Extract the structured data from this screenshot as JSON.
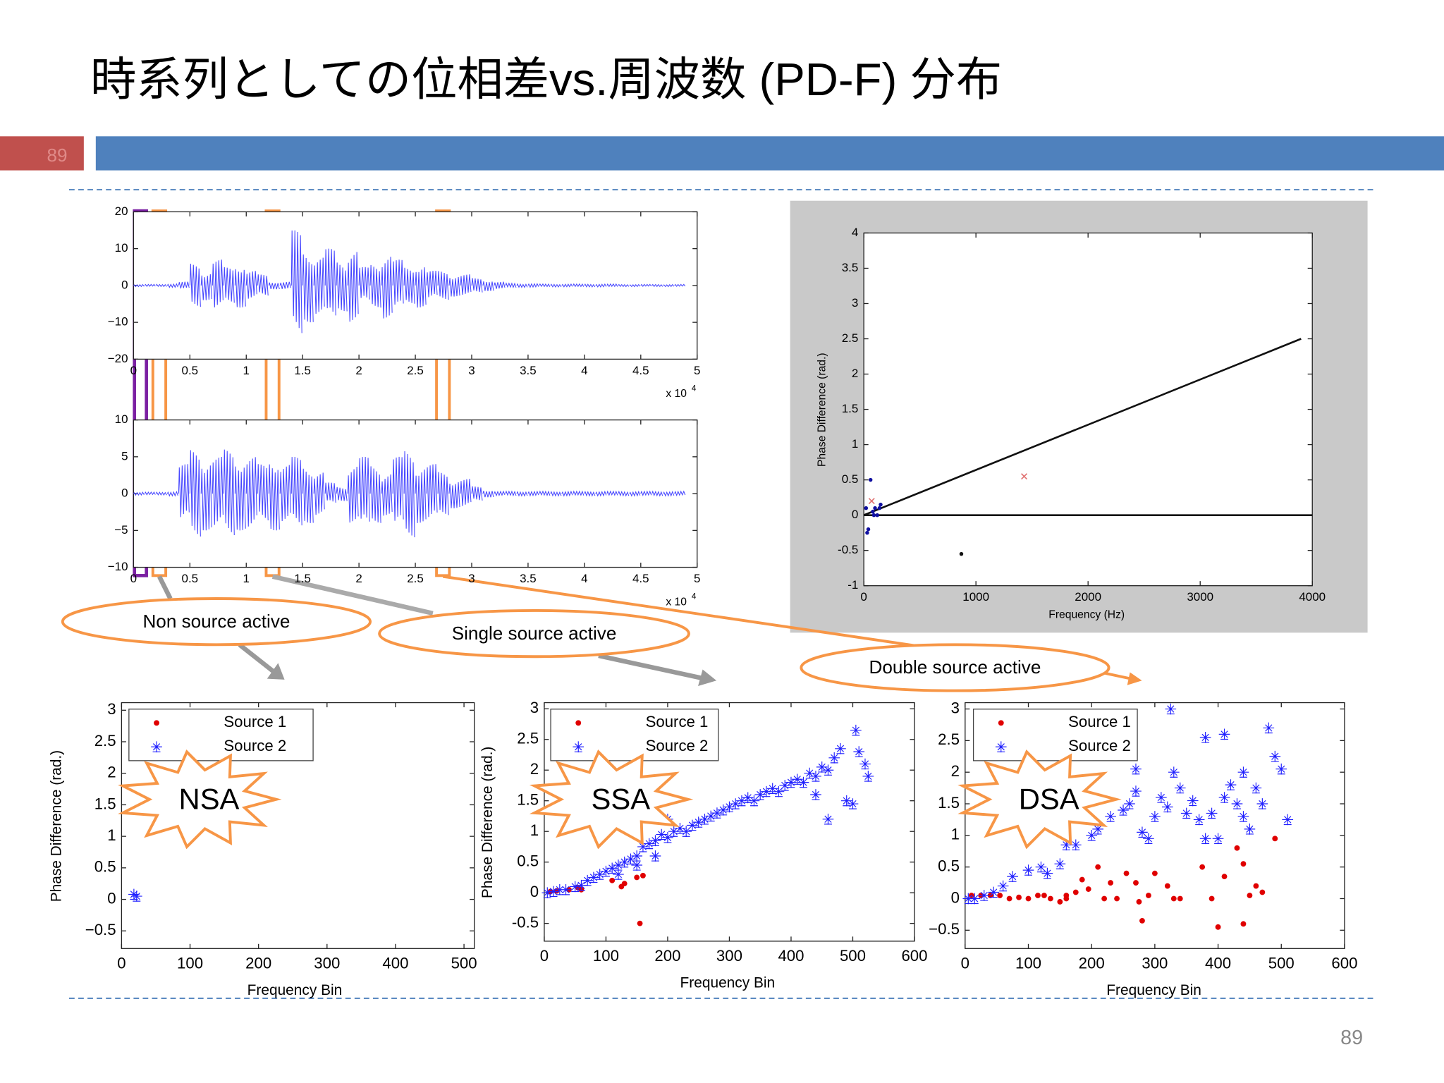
{
  "slide": {
    "title": "時系列としての位相差vs.周波数 (PD-F) 分布",
    "tab_number": "89",
    "page_number": "89",
    "labels": {
      "non_source": "Non source active",
      "single_source": "Single source active",
      "double_source": "Double source active"
    }
  },
  "chart_data": [
    {
      "type": "line",
      "color": "#4646ff",
      "xlim": [
        0,
        5
      ],
      "ylim": [
        -20,
        20
      ],
      "xticks": [
        0,
        0.5,
        1,
        1.5,
        2,
        2.5,
        3,
        3.5,
        4,
        4.5,
        5
      ],
      "yticks": [
        20,
        10,
        0,
        {
          "value": -10,
          "label": "−10"
        },
        {
          "value": -20,
          "label": "−20"
        }
      ],
      "x_multiplier": "x 10",
      "x_exponent": "4",
      "x": [
        0,
        0.1,
        0.2,
        0.3,
        0.4,
        0.5,
        0.6,
        0.7,
        0.8,
        0.9,
        1,
        1.1,
        1.2,
        1.3,
        1.4,
        1.5,
        1.6,
        1.7,
        1.8,
        1.9,
        2,
        2.1,
        2.2,
        2.3,
        2.4,
        2.5,
        2.6,
        2.7,
        2.8,
        2.9,
        3,
        3.1,
        3.2,
        3.3,
        3.4,
        3.5,
        3.6,
        3.7,
        3.8,
        3.9,
        4,
        4.1,
        4.2,
        4.3,
        4.4,
        4.5,
        4.6,
        4.7,
        4.8
      ],
      "values": [
        0.3,
        0.3,
        0.3,
        0.5,
        1,
        6,
        4,
        7,
        5,
        6,
        4,
        3,
        1,
        1,
        15,
        10,
        8,
        10,
        7,
        10,
        5,
        6,
        9,
        7,
        5,
        6,
        4,
        4,
        3,
        3,
        2,
        1.5,
        1,
        0.6,
        0.5,
        0.5,
        0.4,
        0.4,
        0.4,
        0.4,
        0.4,
        0.4,
        0.4,
        0.3,
        0.3,
        0.3,
        0.3,
        0.3,
        0.3
      ]
    },
    {
      "type": "line",
      "color": "#4646ff",
      "xlim": [
        0,
        5
      ],
      "ylim": [
        -10,
        10
      ],
      "xticks": [
        0,
        0.5,
        1,
        1.5,
        2,
        2.5,
        3,
        3.5,
        4,
        4.5,
        5
      ],
      "yticks": [
        10,
        5,
        0,
        {
          "value": -5,
          "label": "−5"
        },
        {
          "value": -10,
          "label": "−10"
        }
      ],
      "x_multiplier": "x 10",
      "x_exponent": "4",
      "x": [
        0,
        0.1,
        0.2,
        0.3,
        0.4,
        0.5,
        0.6,
        0.7,
        0.8,
        0.9,
        1,
        1.1,
        1.2,
        1.3,
        1.4,
        1.5,
        1.6,
        1.7,
        1.8,
        1.9,
        2,
        2.1,
        2.2,
        2.3,
        2.4,
        2.5,
        2.6,
        2.7,
        2.8,
        2.9,
        3,
        3.1,
        3.2,
        3.3,
        3.4,
        3.5,
        3.6,
        3.7,
        3.8,
        3.9,
        4,
        4.1,
        4.2,
        4.3,
        4.4,
        4.5,
        4.6,
        4.7,
        4.8
      ],
      "values": [
        0.2,
        0.2,
        0.2,
        0.3,
        4,
        6,
        5,
        5,
        6,
        5,
        5,
        4,
        5,
        4,
        5,
        4,
        3,
        1.5,
        1,
        4,
        5,
        4,
        3,
        5,
        6,
        4,
        4,
        3,
        2,
        2,
        1,
        0.5,
        0.3,
        0.3,
        0.3,
        0.3,
        0.3,
        0.3,
        0.3,
        0.3,
        0.3,
        0.3,
        0.3,
        0.3,
        0.3,
        0.3,
        0.3,
        0.3,
        0.3
      ]
    },
    {
      "type": "scatter",
      "xlabel": "Frequency (Hz)",
      "ylabel": "Phase Difference (rad.)",
      "xlim": [
        0,
        4000
      ],
      "ylim": [
        -1,
        4
      ],
      "xticks": [
        0,
        1000,
        2000,
        3000,
        4000
      ],
      "yticks": [
        -1,
        -0.5,
        0,
        0.5,
        1,
        1.5,
        2,
        2.5,
        3,
        3.5,
        4
      ],
      "lines": [
        {
          "color": "#111111",
          "x": [
            0,
            3900
          ],
          "values": [
            0,
            2.5
          ]
        },
        {
          "color": "#111111",
          "x": [
            0,
            4000
          ],
          "values": [
            0,
            0
          ]
        }
      ],
      "series": [
        {
          "color": "#1010a0",
          "marker": "dot",
          "x": [
            20,
            40,
            60,
            80,
            100,
            120,
            150,
            30,
            90,
            140
          ],
          "values": [
            0.1,
            -0.2,
            0.5,
            0.05,
            0.1,
            0,
            0.15,
            -0.25,
            0,
            0.1
          ]
        },
        {
          "color": "#e07070",
          "marker": "x",
          "x": [
            1430,
            70
          ],
          "values": [
            0.55,
            0.2
          ]
        },
        {
          "color": "#111111",
          "marker": "dot",
          "x": [
            870
          ],
          "values": [
            -0.55
          ]
        }
      ]
    },
    {
      "type": "scatter",
      "annotation": "NSA",
      "xlabel": "Frequency Bin",
      "ylabel": "Phase Difference (rad.)",
      "xlim": [
        0,
        515
      ],
      "ylim": [
        -0.78,
        3.12
      ],
      "xticks": [
        0,
        100,
        200,
        300,
        400,
        500
      ],
      "yticks": [
        {
          "value": -0.5,
          "label": "−0.5"
        },
        0,
        0.5,
        1,
        1.5,
        2,
        2.5,
        3
      ],
      "series": [
        {
          "name": "Source 1",
          "color": "#e00000",
          "marker": "dot",
          "x": [],
          "values": []
        },
        {
          "name": "Source 2",
          "color": "#2020ff",
          "marker": "star",
          "x": [
            18,
            22
          ],
          "values": [
            0.08,
            0.05
          ]
        }
      ]
    },
    {
      "type": "scatter",
      "annotation": "SSA",
      "xlabel": "Frequency Bin",
      "ylabel": "Phase Difference (rad.)",
      "xlim": [
        0,
        600
      ],
      "ylim": [
        -0.79,
        3.1
      ],
      "xticks": [
        0,
        100,
        200,
        300,
        400,
        500,
        600
      ],
      "yticks": [
        -0.5,
        0,
        0.5,
        1,
        1.5,
        2,
        2.5,
        3
      ],
      "series": [
        {
          "name": "Source 1",
          "color": "#e00000",
          "marker": "dot",
          "x": [
            10,
            20,
            40,
            55,
            125,
            130,
            150,
            160,
            155,
            110,
            60
          ],
          "values": [
            0.02,
            0.03,
            0.05,
            0.08,
            0.1,
            0.15,
            0.25,
            0.28,
            -0.5,
            0.2,
            0.05
          ]
        },
        {
          "name": "Source 2",
          "color": "#2020ff",
          "marker": "star",
          "x": [
            5,
            15,
            25,
            35,
            50,
            60,
            70,
            80,
            90,
            100,
            110,
            120,
            130,
            140,
            150,
            160,
            170,
            180,
            190,
            200,
            210,
            220,
            230,
            240,
            250,
            260,
            270,
            280,
            290,
            300,
            310,
            320,
            330,
            340,
            350,
            360,
            370,
            380,
            390,
            400,
            410,
            420,
            430,
            440,
            450,
            460,
            470,
            480,
            490,
            500,
            440,
            510,
            520,
            505,
            525,
            460,
            180,
            150,
            120,
            200
          ],
          "values": [
            0,
            0.02,
            0.05,
            0.05,
            0.1,
            0.12,
            0.2,
            0.25,
            0.3,
            0.35,
            0.4,
            0.45,
            0.5,
            0.55,
            0.6,
            0.75,
            0.8,
            0.85,
            0.95,
            0.9,
            1,
            1.05,
            1,
            1.1,
            1.15,
            1.2,
            1.25,
            1.3,
            1.35,
            1.4,
            1.45,
            1.5,
            1.55,
            1.5,
            1.6,
            1.65,
            1.7,
            1.65,
            1.75,
            1.8,
            1.85,
            1.8,
            1.95,
            1.9,
            2.05,
            2,
            2.2,
            2.35,
            1.5,
            1.45,
            1.6,
            2.3,
            2.1,
            2.65,
            1.9,
            1.2,
            0.6,
            0.45,
            0.3,
            1.2
          ]
        }
      ]
    },
    {
      "type": "scatter",
      "annotation": "DSA",
      "xlabel": "Frequency Bin",
      "xlim": [
        0,
        600
      ],
      "ylim": [
        -0.79,
        3.1
      ],
      "xticks": [
        0,
        100,
        200,
        300,
        400,
        500,
        600
      ],
      "yticks": [
        {
          "value": -0.5,
          "label": "−0.5"
        },
        0,
        0.5,
        1,
        1.5,
        2,
        2.5,
        3
      ],
      "series": [
        {
          "name": "Source 1",
          "color": "#e00000",
          "marker": "dot",
          "x": [
            10,
            25,
            40,
            55,
            70,
            85,
            100,
            115,
            125,
            135,
            150,
            160,
            175,
            185,
            195,
            210,
            220,
            230,
            240,
            255,
            270,
            280,
            290,
            300,
            320,
            330,
            340,
            375,
            390,
            400,
            410,
            430,
            440,
            450,
            460,
            470,
            490,
            440,
            275,
            160
          ],
          "values": [
            0.05,
            0.05,
            0.05,
            0.05,
            0,
            0.02,
            0,
            0.05,
            0.05,
            0,
            -0.05,
            0.05,
            0.1,
            0.3,
            0.15,
            0.5,
            0,
            0.25,
            0,
            0.4,
            0.25,
            -0.35,
            0.05,
            0.4,
            0.2,
            0,
            0,
            0.5,
            0,
            -0.45,
            0.35,
            0.8,
            0.55,
            0.05,
            0.2,
            0.1,
            0.95,
            -0.4,
            -0.05,
            0
          ]
        },
        {
          "name": "Source 2",
          "color": "#2020ff",
          "marker": "star",
          "x": [
            5,
            15,
            30,
            45,
            60,
            75,
            100,
            120,
            130,
            150,
            160,
            175,
            200,
            210,
            230,
            250,
            260,
            270,
            280,
            290,
            300,
            310,
            320,
            330,
            340,
            350,
            360,
            370,
            380,
            390,
            400,
            410,
            420,
            430,
            440,
            450,
            460,
            470,
            480,
            490,
            500,
            510,
            325,
            380,
            410,
            270,
            440
          ],
          "values": [
            0,
            0,
            0.05,
            0.1,
            0.2,
            0.35,
            0.45,
            0.5,
            0.4,
            0.55,
            0.85,
            0.85,
            1,
            1.1,
            1.3,
            1.4,
            1.5,
            1.7,
            1.05,
            0.95,
            1.3,
            1.6,
            1.45,
            2,
            1.75,
            1.35,
            1.55,
            1.25,
            0.95,
            1.35,
            0.95,
            1.6,
            1.8,
            1.5,
            1.3,
            1.1,
            1.75,
            1.5,
            2.7,
            2.25,
            2.05,
            1.25,
            3,
            2.55,
            2.6,
            2.05,
            2
          ]
        }
      ]
    }
  ]
}
